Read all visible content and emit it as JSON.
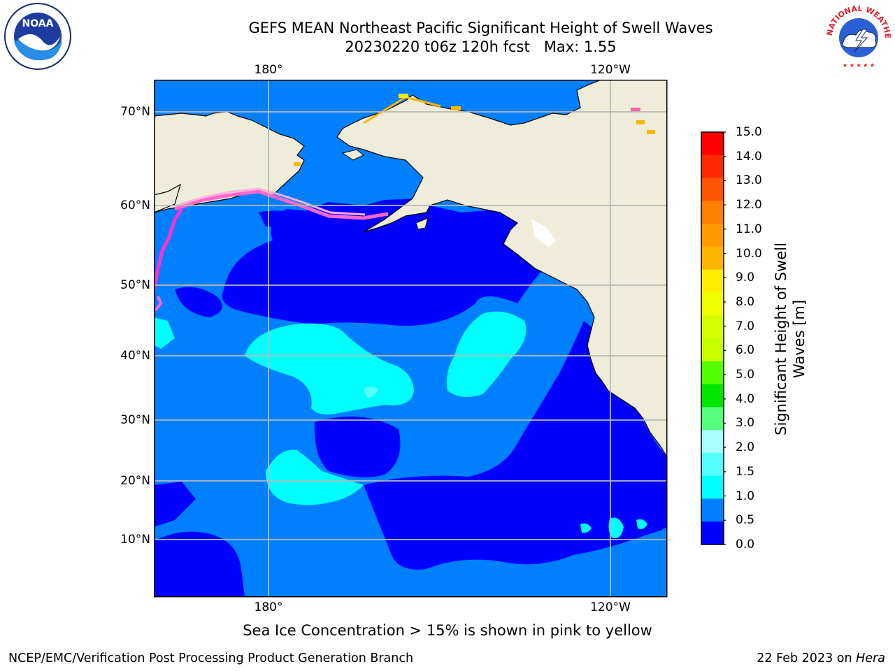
{
  "title": {
    "line1": "GEFS MEAN Northeast Pacific Significant Height of Swell Waves",
    "line2": "20230220 t06z 120h fcst   Max: 1.55"
  },
  "map": {
    "lat_labels": [
      "70°N",
      "60°N",
      "50°N",
      "40°N",
      "30°N",
      "20°N",
      "10°N"
    ],
    "lon_labels": [
      "180°",
      "120°W"
    ],
    "colors": {
      "land": "#efedda",
      "ice_free_white": "#ffffff",
      "gridline": "#b8b8b8",
      "bin0": "#0000ff",
      "bin1": "#0080ff",
      "bin2": "#00ffff",
      "bin3": "#5cffff"
    }
  },
  "colorbar": {
    "title": "Significant Height of Swell Waves [m]",
    "ticks": [
      "15.0",
      "14.0",
      "13.0",
      "12.0",
      "11.0",
      "10.0",
      "9.0",
      "8.0",
      "7.0",
      "6.0",
      "5.0",
      "4.0",
      "3.0",
      "2.0",
      "1.5",
      "1.0",
      "0.5",
      "0.0"
    ],
    "colors_top_to_bottom": [
      "#ff0000",
      "#ff2a00",
      "#ff5500",
      "#ff8000",
      "#ff9a00",
      "#ffb400",
      "#ffee00",
      "#f0ff00",
      "#d4ff00",
      "#c8ff00",
      "#54ff00",
      "#00e600",
      "#54ff7a",
      "#a8ffff",
      "#54ffff",
      "#00ffff",
      "#0080ff",
      "#0000ff"
    ]
  },
  "logos": {
    "noaa_text": "NOAA",
    "nws_text": "NATIONAL WEATHER SERVICE"
  },
  "note": "Sea Ice Concentration > 15% is shown in pink to yellow",
  "footer": {
    "left": "NCEP/EMC/Verification Post Processing Product Generation Branch",
    "right_prefix": "22 Feb 2023 on ",
    "right_host": "Hera"
  }
}
